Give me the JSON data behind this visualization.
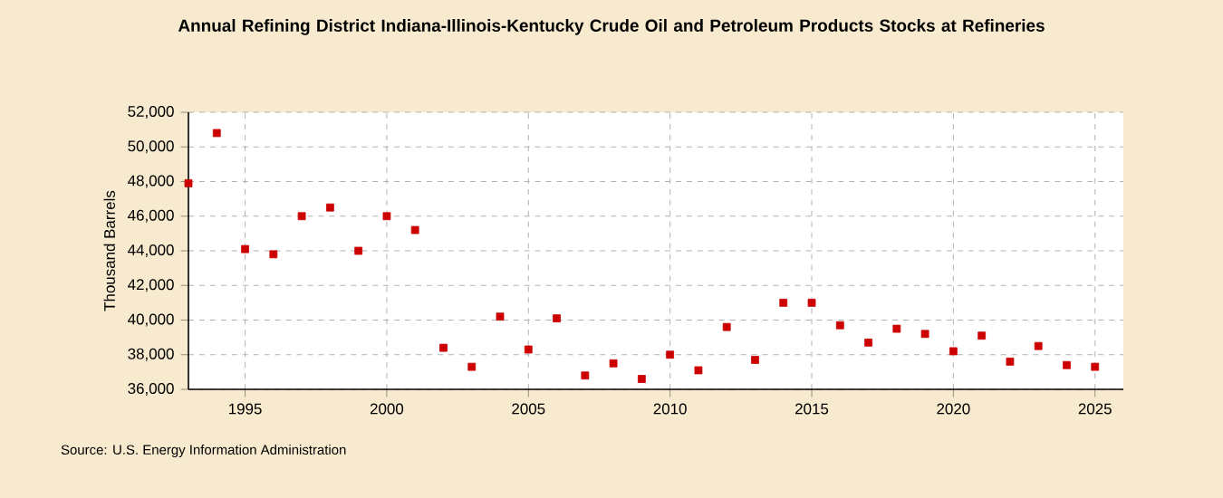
{
  "chart_data": {
    "type": "scatter",
    "title": "Annual Refining District Indiana-Illinois-Kentucky Crude Oil and Petroleum Products Stocks at Refineries",
    "ylabel": "Thousand Barrels",
    "annotations": [
      "Source: U.S. Energy Information Administration"
    ],
    "x": [
      1993,
      1994,
      1995,
      1996,
      1997,
      1998,
      1999,
      2000,
      2001,
      2002,
      2003,
      2004,
      2005,
      2006,
      2007,
      2008,
      2009,
      2010,
      2011,
      2012,
      2013,
      2014,
      2015,
      2016,
      2017,
      2018,
      2019,
      2020,
      2021,
      2022,
      2023,
      2024,
      2025
    ],
    "values": [
      47900,
      50800,
      44100,
      43800,
      46000,
      46500,
      44000,
      46000,
      45200,
      38400,
      37300,
      40200,
      38300,
      40100,
      36800,
      37500,
      36600,
      38000,
      37100,
      39600,
      37700,
      41000,
      41000,
      39700,
      38700,
      39500,
      39200,
      38200,
      39100,
      37600,
      38500,
      37400,
      37300
    ],
    "color": "#cc0000",
    "marker": "square",
    "grid": true,
    "xlim": [
      1993,
      2026
    ],
    "xticks": [
      1995,
      2000,
      2005,
      2010,
      2015,
      2020,
      2025
    ],
    "ylim": [
      36000,
      52000
    ],
    "yticks": [
      {
        "value": 36000,
        "label": "36,000"
      },
      {
        "value": 38000,
        "label": "38,000"
      },
      {
        "value": 40000,
        "label": "40,000"
      },
      {
        "value": 42000,
        "label": "42,000"
      },
      {
        "value": 44000,
        "label": "44,000"
      },
      {
        "value": 46000,
        "label": "46,000"
      },
      {
        "value": 48000,
        "label": "48,000"
      },
      {
        "value": 50000,
        "label": "50,000"
      },
      {
        "value": 52000,
        "label": "52,000"
      }
    ]
  }
}
